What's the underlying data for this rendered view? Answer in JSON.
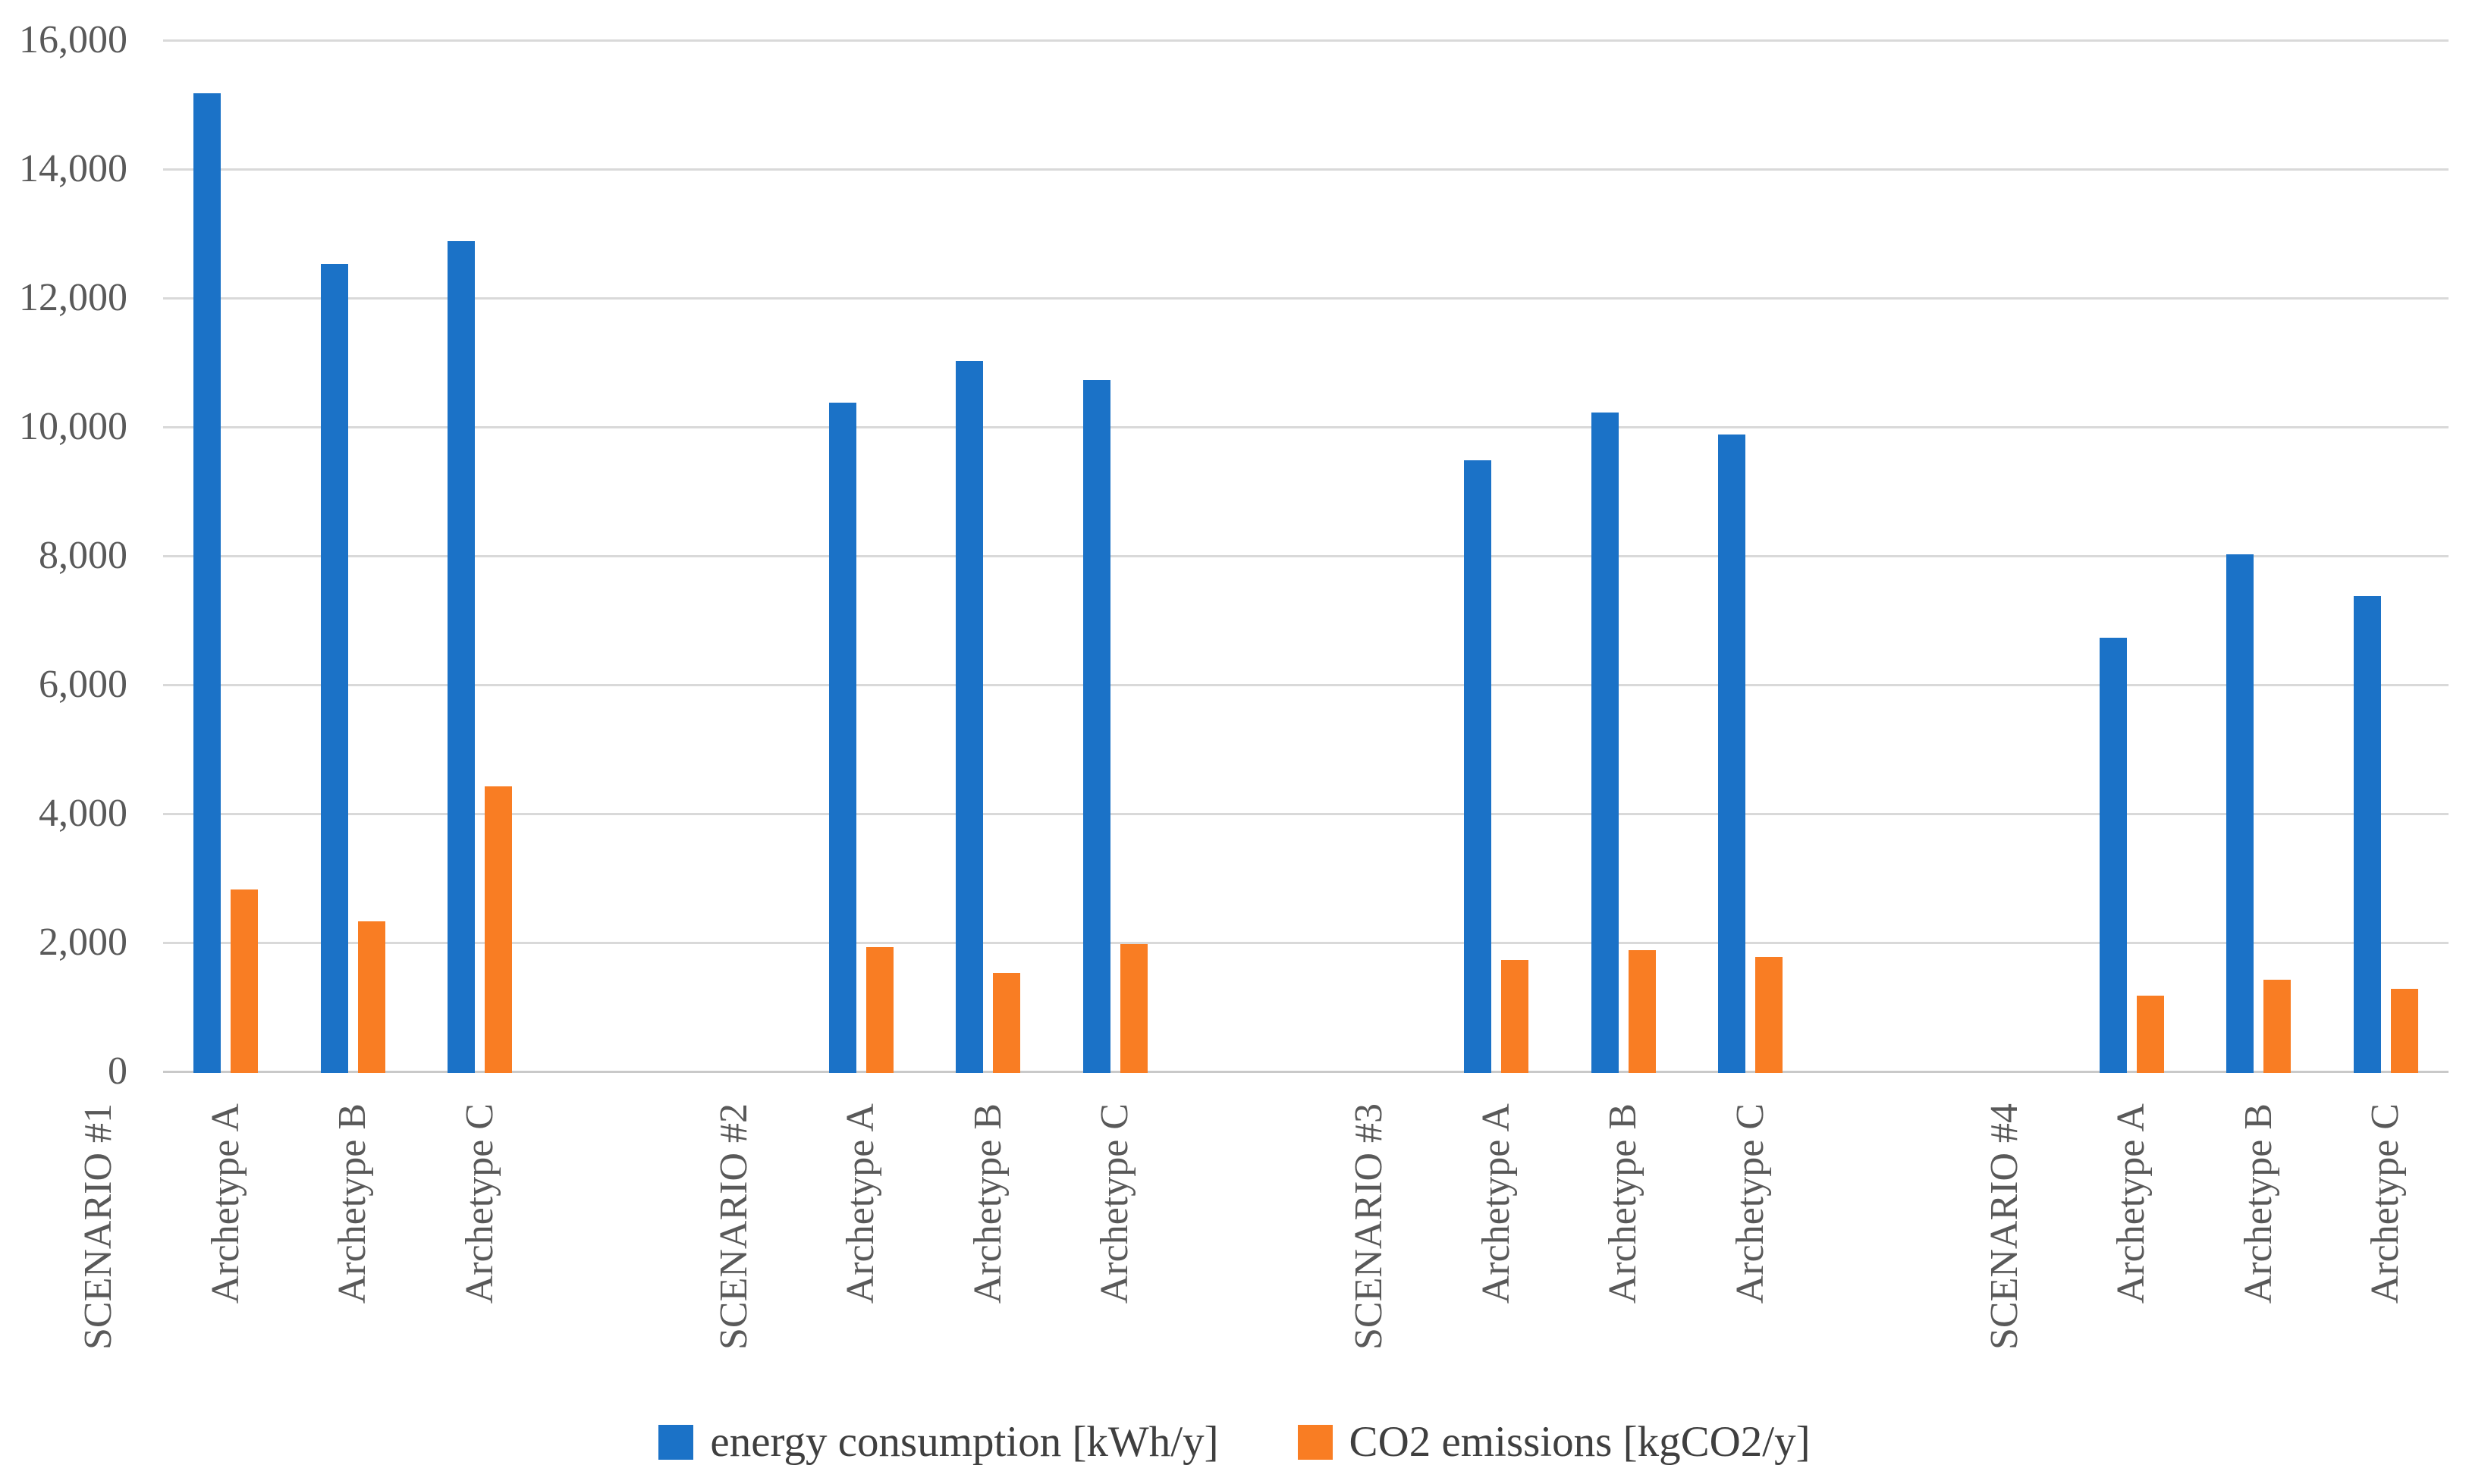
{
  "chart_data": {
    "type": "bar",
    "title": "",
    "xlabel": "",
    "ylabel": "",
    "ylim": [
      0,
      16000
    ],
    "y_tick_step": 2000,
    "y_tick_labels": [
      "0",
      "2,000",
      "4,000",
      "6,000",
      "8,000",
      "10,000",
      "12,000",
      "14,000",
      "16,000"
    ],
    "grid": "horizontal",
    "legend_position": "bottom",
    "series": [
      {
        "name": "energy consumption [kWh/y]",
        "color": "#1B72C7"
      },
      {
        "name": "CO2 emissions [kgCO2/y]",
        "color": "#F97D23"
      }
    ],
    "groups": [
      {
        "scenario": "SCENARIO #1",
        "categories": [
          "Archetype A",
          "Archetype B",
          "Archetype C"
        ],
        "energy_consumption": [
          15200,
          12550,
          12900
        ],
        "co2_emissions": [
          2850,
          2350,
          4450
        ]
      },
      {
        "scenario": "SCENARIO #2",
        "categories": [
          "Archetype A",
          "Archetype B",
          "Archetype C"
        ],
        "energy_consumption": [
          10400,
          11050,
          10750
        ],
        "co2_emissions": [
          1950,
          1550,
          2000
        ]
      },
      {
        "scenario": "SCENARIO #3",
        "categories": [
          "Archetype A",
          "Archetype B",
          "Archetype C"
        ],
        "energy_consumption": [
          9500,
          10250,
          9900
        ],
        "co2_emissions": [
          1750,
          1900,
          1800
        ]
      },
      {
        "scenario": "SCENARIO #4",
        "categories": [
          "Archetype A",
          "Archetype B",
          "Archetype C"
        ],
        "energy_consumption": [
          6750,
          8050,
          7400
        ],
        "co2_emissions": [
          1200,
          1450,
          1300
        ]
      }
    ]
  },
  "colors": {
    "background": "#FFFFFF",
    "gridline": "#D9D9D9",
    "baseline": "#C9C9C9",
    "axis_text": "#595959",
    "legend_text": "#3F3F3F"
  }
}
